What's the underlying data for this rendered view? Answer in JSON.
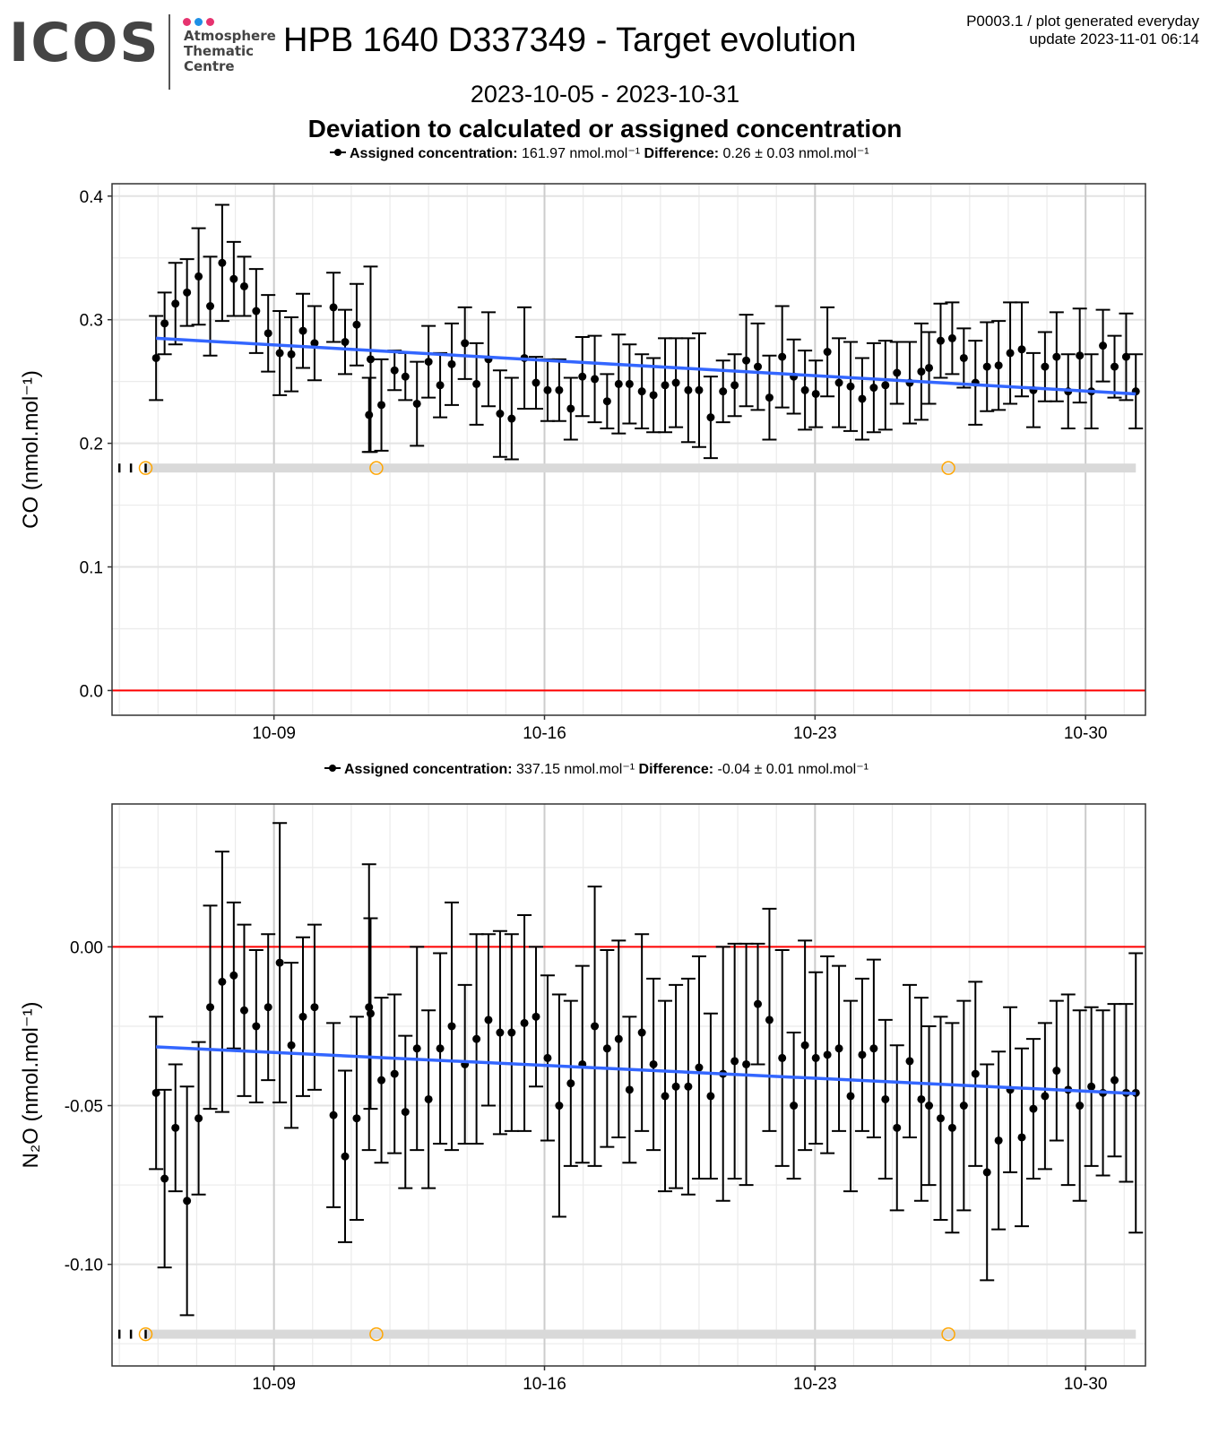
{
  "header": {
    "logo_text": "ICOS",
    "logo_dots": [
      "#e6336f",
      "#1e90e6",
      "#e6336f"
    ],
    "logo_subtitle": [
      "Atmosphere",
      "Thematic",
      "Centre"
    ],
    "title": "HPB 1640 D337349 - Target evolution",
    "meta_line1": "P0003.1 / plot generated everyday",
    "meta_line2": "update  2023-11-01 06:14",
    "date_range": "2023-10-05 - 2023-10-31",
    "subtitle": "Deviation to calculated or assigned concentration"
  },
  "chart_data": [
    {
      "type": "scatter",
      "name": "CO",
      "ylabel": "CO (nmol.mol⁻¹)",
      "legend": {
        "assigned_label": "Assigned concentration:",
        "assigned_value": "161.97 nmol.mol⁻¹",
        "difference_label": "Difference:",
        "difference_value": "0.26 ± 0.03 nmol.mol⁻¹"
      },
      "x_axis": {
        "type": "date",
        "start": "2023-10-05",
        "end": "2023-10-31",
        "ticks": [
          "10-09",
          "10-16",
          "10-23",
          "10-30"
        ],
        "tick_days": [
          4,
          11,
          18,
          25
        ]
      },
      "ylim": [
        -0.02,
        0.41
      ],
      "yticks": [
        0.0,
        0.1,
        0.2,
        0.3,
        0.4
      ],
      "ytick_labels": [
        "0.0",
        "0.1",
        "0.2",
        "0.3",
        "0.4"
      ],
      "grid": true,
      "reference_line": {
        "y": 0.0,
        "color": "#ff0000"
      },
      "trend": {
        "x": [
          0.95,
          26.3
        ],
        "y": [
          0.285,
          0.24
        ],
        "color": "#3366ff"
      },
      "marker_band": {
        "y": 0.18,
        "ticks_days": [
          0.0,
          0.3,
          0.68
        ],
        "circles_days": [
          0.68,
          6.65,
          21.45
        ],
        "band_color": "#d9d9d9",
        "circle_color": "#ffa500"
      },
      "points": [
        [
          0.95,
          0.269,
          0.034
        ],
        [
          1.17,
          0.297,
          0.025
        ],
        [
          1.45,
          0.313,
          0.033
        ],
        [
          1.75,
          0.322,
          0.027
        ],
        [
          2.05,
          0.335,
          0.039
        ],
        [
          2.35,
          0.311,
          0.04
        ],
        [
          2.66,
          0.346,
          0.047
        ],
        [
          2.96,
          0.333,
          0.03
        ],
        [
          3.23,
          0.327,
          0.024
        ],
        [
          3.54,
          0.307,
          0.034
        ],
        [
          3.85,
          0.289,
          0.031
        ],
        [
          4.15,
          0.273,
          0.034
        ],
        [
          4.45,
          0.272,
          0.03
        ],
        [
          4.75,
          0.291,
          0.03
        ],
        [
          5.05,
          0.281,
          0.03
        ],
        [
          5.54,
          0.31,
          0.028
        ],
        [
          5.84,
          0.282,
          0.026
        ],
        [
          6.14,
          0.296,
          0.033
        ],
        [
          6.46,
          0.223,
          0.03
        ],
        [
          6.5,
          0.268,
          0.075
        ],
        [
          6.78,
          0.231,
          0.037
        ],
        [
          7.12,
          0.259,
          0.016
        ],
        [
          7.4,
          0.254,
          0.019
        ],
        [
          7.7,
          0.232,
          0.034
        ],
        [
          8.0,
          0.266,
          0.029
        ],
        [
          8.3,
          0.247,
          0.026
        ],
        [
          8.6,
          0.264,
          0.033
        ],
        [
          8.94,
          0.281,
          0.029
        ],
        [
          9.24,
          0.248,
          0.033
        ],
        [
          9.55,
          0.268,
          0.038
        ],
        [
          9.85,
          0.224,
          0.035
        ],
        [
          10.15,
          0.22,
          0.033
        ],
        [
          10.48,
          0.269,
          0.041
        ],
        [
          10.78,
          0.249,
          0.021
        ],
        [
          11.08,
          0.243,
          0.025
        ],
        [
          11.38,
          0.243,
          0.025
        ],
        [
          11.68,
          0.228,
          0.025
        ],
        [
          11.98,
          0.254,
          0.032
        ],
        [
          12.3,
          0.252,
          0.035
        ],
        [
          12.62,
          0.234,
          0.022
        ],
        [
          12.92,
          0.248,
          0.04
        ],
        [
          13.2,
          0.248,
          0.032
        ],
        [
          13.52,
          0.242,
          0.03
        ],
        [
          13.82,
          0.239,
          0.03
        ],
        [
          14.12,
          0.247,
          0.038
        ],
        [
          14.4,
          0.249,
          0.036
        ],
        [
          14.72,
          0.243,
          0.042
        ],
        [
          15.0,
          0.243,
          0.046
        ],
        [
          15.3,
          0.221,
          0.033
        ],
        [
          15.62,
          0.242,
          0.025
        ],
        [
          15.92,
          0.247,
          0.025
        ],
        [
          16.22,
          0.267,
          0.037
        ],
        [
          16.52,
          0.262,
          0.035
        ],
        [
          16.82,
          0.237,
          0.034
        ],
        [
          17.15,
          0.27,
          0.041
        ],
        [
          17.45,
          0.254,
          0.03
        ],
        [
          17.74,
          0.243,
          0.032
        ],
        [
          18.02,
          0.24,
          0.027
        ],
        [
          18.32,
          0.274,
          0.036
        ],
        [
          18.62,
          0.249,
          0.036
        ],
        [
          18.92,
          0.246,
          0.036
        ],
        [
          19.22,
          0.236,
          0.033
        ],
        [
          19.52,
          0.245,
          0.036
        ],
        [
          19.82,
          0.247,
          0.036
        ],
        [
          20.12,
          0.257,
          0.025
        ],
        [
          20.45,
          0.249,
          0.033
        ],
        [
          20.75,
          0.258,
          0.039
        ],
        [
          20.95,
          0.261,
          0.029
        ],
        [
          21.25,
          0.283,
          0.03
        ],
        [
          21.55,
          0.285,
          0.029
        ],
        [
          21.85,
          0.269,
          0.024
        ],
        [
          22.15,
          0.249,
          0.034
        ],
        [
          22.45,
          0.262,
          0.036
        ],
        [
          22.75,
          0.263,
          0.036
        ],
        [
          23.05,
          0.273,
          0.041
        ],
        [
          23.35,
          0.276,
          0.038
        ],
        [
          23.65,
          0.243,
          0.03
        ],
        [
          23.95,
          0.262,
          0.028
        ],
        [
          24.25,
          0.27,
          0.036
        ],
        [
          24.55,
          0.242,
          0.03
        ],
        [
          24.85,
          0.271,
          0.038
        ],
        [
          25.15,
          0.242,
          0.03
        ],
        [
          25.45,
          0.279,
          0.029
        ],
        [
          25.75,
          0.262,
          0.025
        ],
        [
          26.05,
          0.27,
          0.035
        ],
        [
          26.3,
          0.242,
          0.03
        ]
      ]
    },
    {
      "type": "scatter",
      "name": "N2O",
      "ylabel": "N₂O (nmol.mol⁻¹)",
      "legend": {
        "assigned_label": "Assigned concentration:",
        "assigned_value": "337.15 nmol.mol⁻¹",
        "difference_label": "Difference:",
        "difference_value": "-0.04 ± 0.01 nmol.mol⁻¹"
      },
      "x_axis": {
        "type": "date",
        "start": "2023-10-05",
        "end": "2023-10-31",
        "ticks": [
          "10-09",
          "10-16",
          "10-23",
          "10-30"
        ],
        "tick_days": [
          4,
          11,
          18,
          25
        ]
      },
      "ylim": [
        -0.132,
        0.045
      ],
      "yticks": [
        0.0,
        -0.05,
        -0.1
      ],
      "ytick_labels": [
        "0.00",
        "-0.05",
        "-0.10"
      ],
      "grid": true,
      "reference_line": {
        "y": 0.0,
        "color": "#ff0000"
      },
      "trend": {
        "x": [
          0.95,
          26.3
        ],
        "y": [
          -0.0315,
          -0.0462
        ],
        "color": "#3366ff"
      },
      "marker_band": {
        "y": -0.122,
        "ticks_days": [
          0.0,
          0.3,
          0.68
        ],
        "circles_days": [
          0.68,
          6.65,
          21.45
        ],
        "band_color": "#d9d9d9",
        "circle_color": "#ffa500"
      },
      "points": [
        [
          0.95,
          -0.046,
          0.024
        ],
        [
          1.17,
          -0.073,
          0.028
        ],
        [
          1.45,
          -0.057,
          0.02
        ],
        [
          1.75,
          -0.08,
          0.036
        ],
        [
          2.05,
          -0.054,
          0.024
        ],
        [
          2.35,
          -0.019,
          0.032
        ],
        [
          2.66,
          -0.011,
          0.041
        ],
        [
          2.96,
          -0.009,
          0.023
        ],
        [
          3.23,
          -0.02,
          0.027
        ],
        [
          3.54,
          -0.025,
          0.024
        ],
        [
          3.85,
          -0.019,
          0.023
        ],
        [
          4.15,
          -0.005,
          0.044
        ],
        [
          4.45,
          -0.031,
          0.026
        ],
        [
          4.75,
          -0.022,
          0.025
        ],
        [
          5.05,
          -0.019,
          0.026
        ],
        [
          5.54,
          -0.053,
          0.029
        ],
        [
          5.84,
          -0.066,
          0.027
        ],
        [
          6.14,
          -0.054,
          0.032
        ],
        [
          6.46,
          -0.019,
          0.045
        ],
        [
          6.5,
          -0.021,
          0.03
        ],
        [
          6.78,
          -0.042,
          0.026
        ],
        [
          7.12,
          -0.04,
          0.025
        ],
        [
          7.4,
          -0.052,
          0.024
        ],
        [
          7.7,
          -0.032,
          0.032
        ],
        [
          8.0,
          -0.048,
          0.028
        ],
        [
          8.3,
          -0.032,
          0.03
        ],
        [
          8.6,
          -0.025,
          0.039
        ],
        [
          8.94,
          -0.037,
          0.025
        ],
        [
          9.24,
          -0.029,
          0.033
        ],
        [
          9.55,
          -0.023,
          0.027
        ],
        [
          9.85,
          -0.027,
          0.032
        ],
        [
          10.15,
          -0.027,
          0.031
        ],
        [
          10.48,
          -0.024,
          0.034
        ],
        [
          10.78,
          -0.022,
          0.022
        ],
        [
          11.08,
          -0.035,
          0.026
        ],
        [
          11.38,
          -0.05,
          0.035
        ],
        [
          11.68,
          -0.043,
          0.026
        ],
        [
          11.98,
          -0.037,
          0.031
        ],
        [
          12.3,
          -0.025,
          0.044
        ],
        [
          12.62,
          -0.032,
          0.031
        ],
        [
          12.92,
          -0.029,
          0.031
        ],
        [
          13.2,
          -0.045,
          0.023
        ],
        [
          13.52,
          -0.027,
          0.031
        ],
        [
          13.82,
          -0.037,
          0.027
        ],
        [
          14.12,
          -0.047,
          0.03
        ],
        [
          14.4,
          -0.044,
          0.032
        ],
        [
          14.72,
          -0.044,
          0.034
        ],
        [
          15.0,
          -0.038,
          0.035
        ],
        [
          15.3,
          -0.047,
          0.026
        ],
        [
          15.62,
          -0.04,
          0.04
        ],
        [
          15.92,
          -0.036,
          0.037
        ],
        [
          16.22,
          -0.037,
          0.038
        ],
        [
          16.52,
          -0.018,
          0.019
        ],
        [
          16.82,
          -0.023,
          0.035
        ],
        [
          17.15,
          -0.035,
          0.034
        ],
        [
          17.45,
          -0.05,
          0.023
        ],
        [
          17.74,
          -0.031,
          0.033
        ],
        [
          18.02,
          -0.035,
          0.027
        ],
        [
          18.32,
          -0.034,
          0.031
        ],
        [
          18.62,
          -0.032,
          0.026
        ],
        [
          18.92,
          -0.047,
          0.03
        ],
        [
          19.22,
          -0.034,
          0.024
        ],
        [
          19.52,
          -0.032,
          0.028
        ],
        [
          19.82,
          -0.048,
          0.025
        ],
        [
          20.12,
          -0.057,
          0.026
        ],
        [
          20.45,
          -0.036,
          0.024
        ],
        [
          20.75,
          -0.048,
          0.032
        ],
        [
          20.95,
          -0.05,
          0.025
        ],
        [
          21.25,
          -0.054,
          0.032
        ],
        [
          21.55,
          -0.057,
          0.033
        ],
        [
          21.85,
          -0.05,
          0.033
        ],
        [
          22.15,
          -0.04,
          0.029
        ],
        [
          22.45,
          -0.071,
          0.034
        ],
        [
          22.75,
          -0.061,
          0.028
        ],
        [
          23.05,
          -0.045,
          0.026
        ],
        [
          23.35,
          -0.06,
          0.028
        ],
        [
          23.65,
          -0.051,
          0.022
        ],
        [
          23.95,
          -0.047,
          0.023
        ],
        [
          24.25,
          -0.039,
          0.022
        ],
        [
          24.55,
          -0.045,
          0.03
        ],
        [
          24.85,
          -0.05,
          0.03
        ],
        [
          25.15,
          -0.044,
          0.025
        ],
        [
          25.45,
          -0.046,
          0.026
        ],
        [
          25.75,
          -0.042,
          0.024
        ],
        [
          26.05,
          -0.046,
          0.028
        ],
        [
          26.3,
          -0.046,
          0.044
        ]
      ]
    }
  ]
}
